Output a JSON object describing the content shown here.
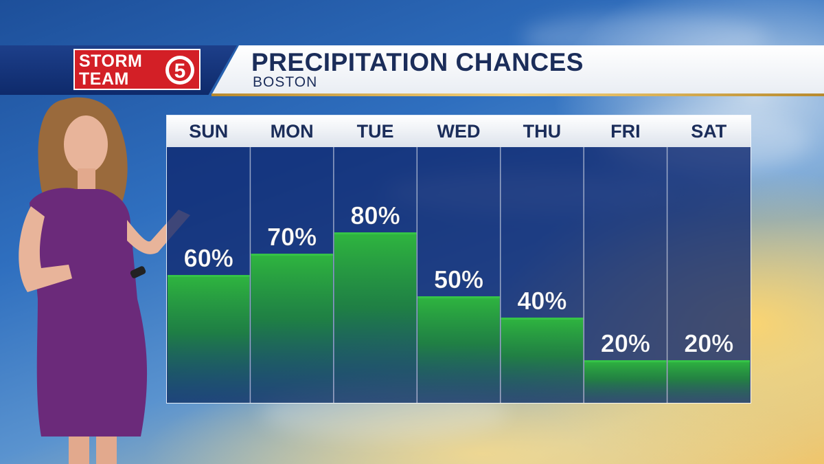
{
  "header": {
    "logo_word_1": "STORM",
    "logo_word_2": "TEAM",
    "logo_number": "5",
    "title": "PRECIPITATION CHANCES",
    "subtitle": "BOSTON"
  },
  "colors": {
    "header_navy": "#0e2a6b",
    "logo_red": "#d31f26",
    "title_text": "#1b2d5a",
    "bar_green": "#27a838",
    "panel_blue": "#1a3f8c"
  },
  "chart_data": {
    "type": "bar",
    "title": "PRECIPITATION CHANCES",
    "subtitle": "BOSTON",
    "categories": [
      "SUN",
      "MON",
      "TUE",
      "WED",
      "THU",
      "FRI",
      "SAT"
    ],
    "values": [
      60,
      70,
      80,
      50,
      40,
      20,
      20
    ],
    "value_labels": [
      "60%",
      "70%",
      "80%",
      "50%",
      "40%",
      "20%",
      "20%"
    ],
    "unit": "%",
    "ylim": [
      0,
      100
    ],
    "grid": false,
    "legend": "none"
  }
}
